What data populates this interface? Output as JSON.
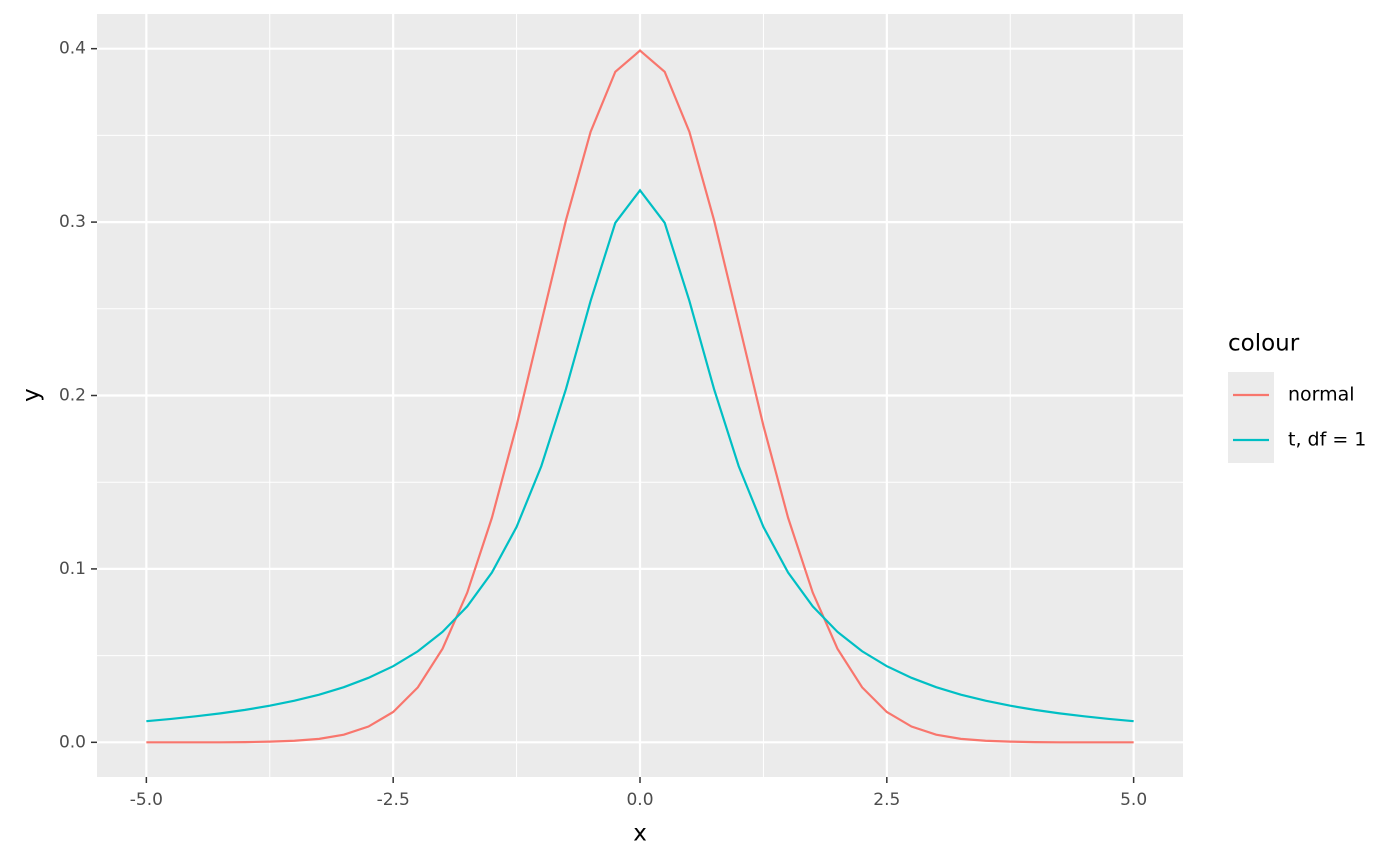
{
  "chart_data": {
    "type": "line",
    "x_label": "x",
    "y_label": "y",
    "legend_title": "colour",
    "x": [
      -5,
      -4.75,
      -4.5,
      -4.25,
      -4,
      -3.75,
      -3.5,
      -3.25,
      -3,
      -2.75,
      -2.5,
      -2.25,
      -2,
      -1.75,
      -1.5,
      -1.25,
      -1,
      -0.75,
      -0.5,
      -0.25,
      0,
      0.25,
      0.5,
      0.75,
      1,
      1.25,
      1.5,
      1.75,
      2,
      2.25,
      2.5,
      2.75,
      3,
      3.25,
      3.5,
      3.75,
      4,
      4.25,
      4.5,
      4.75,
      5
    ],
    "series": [
      {
        "name": "normal",
        "color": "#f8766d",
        "values": [
          0,
          0,
          0,
          0,
          0.0001,
          0.0004,
          0.0009,
          0.002,
          0.0044,
          0.0091,
          0.0175,
          0.0317,
          0.054,
          0.0863,
          0.1295,
          0.1826,
          0.242,
          0.3011,
          0.3521,
          0.3867,
          0.3989,
          0.3867,
          0.3521,
          0.3011,
          0.242,
          0.1826,
          0.1295,
          0.0863,
          0.054,
          0.0317,
          0.0175,
          0.0091,
          0.0044,
          0.002,
          0.0009,
          0.0004,
          0.0001,
          0,
          0,
          0,
          0
        ]
      },
      {
        "name": "t, df = 1",
        "color": "#00bfc4",
        "values": [
          0.0122,
          0.0135,
          0.015,
          0.0167,
          0.0187,
          0.0211,
          0.024,
          0.0275,
          0.0318,
          0.0372,
          0.0439,
          0.0525,
          0.0637,
          0.0784,
          0.0979,
          0.1242,
          0.1592,
          0.2037,
          0.2546,
          0.2996,
          0.3183,
          0.2996,
          0.2546,
          0.2037,
          0.1592,
          0.1242,
          0.0979,
          0.0784,
          0.0637,
          0.0525,
          0.0439,
          0.0372,
          0.0318,
          0.0275,
          0.024,
          0.0211,
          0.0187,
          0.0167,
          0.015,
          0.0135,
          0.0122
        ]
      }
    ],
    "xlim": [
      -5.5,
      5.5
    ],
    "ylim": [
      -0.02,
      0.42
    ],
    "xticks": [
      {
        "value": -5,
        "label": "-5.0"
      },
      {
        "value": -2.5,
        "label": "-2.5"
      },
      {
        "value": 0,
        "label": "0.0"
      },
      {
        "value": 2.5,
        "label": "2.5"
      },
      {
        "value": 5,
        "label": "5.0"
      }
    ],
    "yticks": [
      {
        "value": 0,
        "label": "0.0"
      },
      0.1,
      0.2,
      0.3,
      0.4
    ],
    "grid": true
  }
}
